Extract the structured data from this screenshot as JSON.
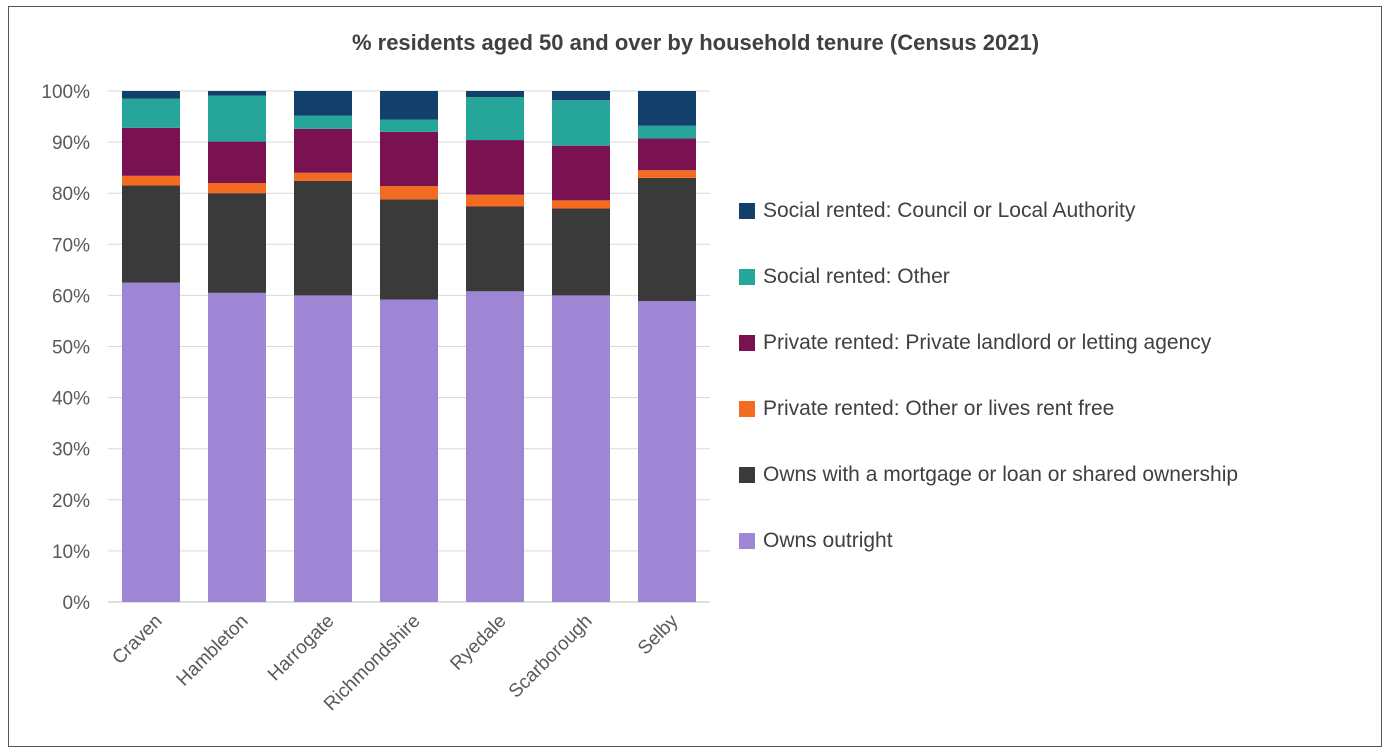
{
  "chart_data": {
    "type": "bar",
    "stacked": true,
    "title": "% residents aged 50 and over by household tenure (Census 2021)",
    "xlabel": "",
    "ylabel": "",
    "ylim": [
      0,
      100
    ],
    "y_ticks": [
      "0%",
      "10%",
      "20%",
      "30%",
      "40%",
      "50%",
      "60%",
      "70%",
      "80%",
      "90%",
      "100%"
    ],
    "y_tick_values": [
      0,
      10,
      20,
      30,
      40,
      50,
      60,
      70,
      80,
      90,
      100
    ],
    "grid": true,
    "legend_position": "right",
    "categories": [
      "Craven",
      "Hambleton",
      "Harrogate",
      "Richmondshire",
      "Ryedale",
      "Scarborough",
      "Selby"
    ],
    "series": [
      {
        "name": "Owns outright",
        "color": "#9f86d4",
        "values": [
          62.5,
          60.5,
          60.0,
          59.2,
          60.8,
          60.0,
          58.9
        ]
      },
      {
        "name": "Owns with a mortgage or loan or shared ownership",
        "color": "#3a3a3a",
        "values": [
          19.0,
          19.5,
          22.4,
          19.6,
          16.6,
          17.0,
          24.1
        ]
      },
      {
        "name": "Private rented: Other or lives rent free",
        "color": "#f26b21",
        "values": [
          1.9,
          2.0,
          1.6,
          2.6,
          2.3,
          1.6,
          1.5
        ]
      },
      {
        "name": "Private rented: Private landlord or letting agency",
        "color": "#7a1150",
        "values": [
          9.4,
          8.1,
          8.6,
          10.6,
          10.7,
          10.7,
          6.2
        ]
      },
      {
        "name": "Social rented: Other",
        "color": "#26a69a",
        "values": [
          5.7,
          9.0,
          2.6,
          2.4,
          8.4,
          8.9,
          2.5
        ]
      },
      {
        "name": "Social rented: Council or Local Authority",
        "color": "#12406a",
        "values": [
          1.5,
          0.9,
          4.8,
          5.6,
          1.2,
          1.8,
          6.8
        ]
      }
    ],
    "legend_order": [
      "Social rented: Council or Local Authority",
      "Social rented: Other",
      "Private rented: Private landlord or letting agency",
      "Private rented: Other or lives rent free",
      "Owns with a mortgage or loan or shared ownership",
      "Owns outright"
    ]
  }
}
